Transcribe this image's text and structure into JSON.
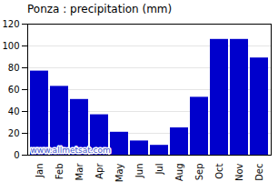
{
  "chart_data": {
    "type": "bar",
    "title": "Ponza : precipitation (mm)",
    "categories": [
      "Jan",
      "Feb",
      "Mar",
      "Apr",
      "May",
      "Jun",
      "Jul",
      "Aug",
      "Sep",
      "Oct",
      "Nov",
      "Dec"
    ],
    "values": [
      77,
      63,
      51,
      37,
      21,
      13,
      9,
      25,
      53,
      106,
      106,
      89
    ],
    "color": "#0000cc",
    "ylim": [
      0,
      120
    ],
    "yticks": [
      0,
      20,
      40,
      60,
      80,
      100,
      120
    ],
    "grid": true,
    "annotations": [
      "www.allmetsat.com"
    ]
  }
}
